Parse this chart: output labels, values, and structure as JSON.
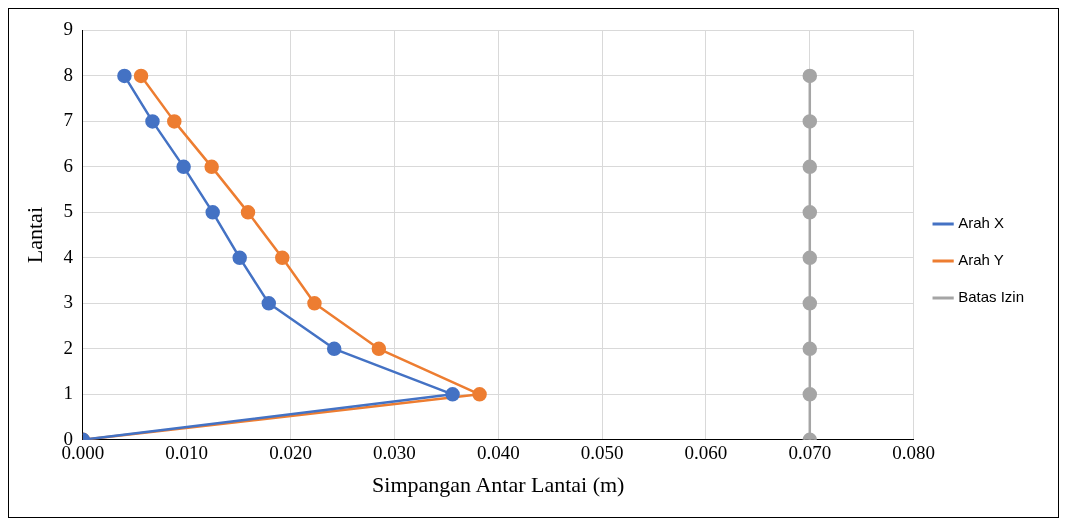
{
  "chart_data": {
    "type": "line",
    "xlabel": "Simpangan Antar Lantai (m)",
    "ylabel": "Lantai",
    "xlim": [
      0,
      0.08
    ],
    "xticks": [
      {
        "value": 0,
        "label": "0.000"
      },
      {
        "value": 0.01,
        "label": "0.010"
      },
      {
        "value": 0.02,
        "label": "0.020"
      },
      {
        "value": 0.03,
        "label": "0.030"
      },
      {
        "value": 0.04,
        "label": "0.040"
      },
      {
        "value": 0.05,
        "label": "0.050"
      },
      {
        "value": 0.06,
        "label": "0.060"
      },
      {
        "value": 0.07,
        "label": "0.070"
      },
      {
        "value": 0.08,
        "label": "0.080"
      }
    ],
    "ylim": [
      0,
      9
    ],
    "yticks": [
      0,
      1,
      2,
      3,
      4,
      5,
      6,
      7,
      8,
      9
    ],
    "grid": true,
    "legend": "right",
    "marker": "circle",
    "line_style": "solid",
    "series": [
      {
        "name": "Arah X",
        "color": "#4472c4",
        "x": [
          0,
          0.0356,
          0.0242,
          0.0179,
          0.0151,
          0.0125,
          0.0097,
          0.0067,
          0.004
        ],
        "values": [
          0,
          1,
          2,
          3,
          4,
          5,
          6,
          7,
          8
        ]
      },
      {
        "name": "Arah Y",
        "color": "#ed7d31",
        "x": [
          0,
          0.0382,
          0.0285,
          0.0223,
          0.0192,
          0.0159,
          0.0124,
          0.0088,
          0.0056
        ],
        "values": [
          0,
          1,
          2,
          3,
          4,
          5,
          6,
          7,
          8
        ]
      },
      {
        "name": "Batas Izin",
        "color": "#a5a5a5",
        "x": [
          0.07,
          0.07,
          0.07,
          0.07,
          0.07,
          0.07,
          0.07,
          0.07,
          0.07
        ],
        "values": [
          0,
          1,
          2,
          3,
          4,
          5,
          6,
          7,
          8
        ]
      }
    ]
  }
}
